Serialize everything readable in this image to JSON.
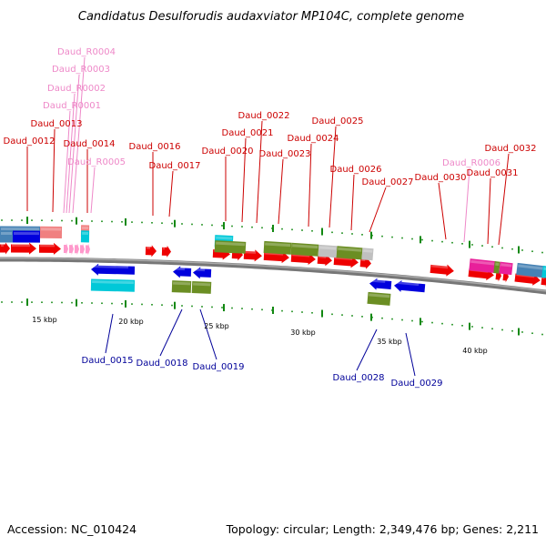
{
  "title": "Candidatus Desulforudis audaxviator MP104C, complete genome",
  "footer": {
    "accession": "Accession: NC_010424",
    "summary": "Topology: circular; Length: 2,349,476 bp; Genes: 2,211"
  },
  "colors": {
    "forward_label": "#cc0000",
    "rna_label": "#ee88c8",
    "reverse_label": "#000099",
    "cds": "#ee0000",
    "reverse_cds": "#0000dd",
    "rna": "#ff99cc",
    "olive": "#6b8e23",
    "cyan": "#00c8d8",
    "steel": "#4682b4",
    "salmon": "#f08080",
    "magenta": "#e8209a",
    "grey": "#c0c0c0",
    "tick": "#118811",
    "backbone": "#777777"
  },
  "scale_labels": [
    "15 kbp",
    "20 kbp",
    "25 kbp",
    "30 kbp",
    "35 kbp",
    "40 kbp"
  ],
  "labels": {
    "forward": [
      "Daud_0012",
      "Daud_0013",
      "Daud_0014",
      "Daud_0016",
      "Daud_0017",
      "Daud_0020",
      "Daud_0021",
      "Daud_0022",
      "Daud_0023",
      "Daud_0024",
      "Daud_0025",
      "Daud_0026",
      "Daud_0027",
      "Daud_0030",
      "Daud_0031",
      "Daud_0032"
    ],
    "rna": [
      "Daud_R0004",
      "Daud_R0003",
      "Daud_R0002",
      "Daud_R0001",
      "Daud_R0005",
      "Daud_R0006"
    ],
    "reverse": [
      "Daud_0015",
      "Daud_0018",
      "Daud_0019",
      "Daud_0028",
      "Daud_0029"
    ]
  }
}
